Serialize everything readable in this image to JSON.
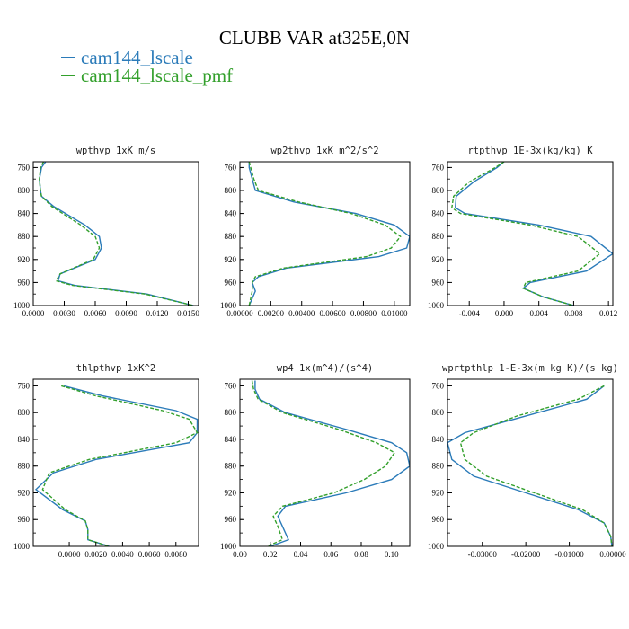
{
  "title": "CLUBB VAR at325E,0N",
  "legend": [
    {
      "label": "cam144_lscale",
      "color": "#2b7bb9"
    },
    {
      "label": "cam144_lscale_pmf",
      "color": "#33a02c"
    }
  ],
  "chart_data": [
    {
      "type": "line",
      "title": "wpthvp  1xK m/s",
      "xlim": [
        0,
        0.016
      ],
      "ylim": [
        1000,
        750
      ],
      "xticks": [
        "0.0000",
        "0.0030",
        "0.0060",
        "0.0090",
        "0.0120",
        "0.0150"
      ],
      "xtick_values": [
        0,
        0.003,
        0.006,
        0.009,
        0.012,
        0.015
      ],
      "yticks": [
        "760",
        "800",
        "840",
        "880",
        "920",
        "960",
        "1000"
      ],
      "ytick_values": [
        760,
        800,
        840,
        880,
        920,
        960,
        1000
      ],
      "series": [
        {
          "name": "cam144_lscale",
          "x": [
            0.0012,
            0.0008,
            0.0006,
            0.0007,
            0.0008,
            0.002,
            0.005,
            0.0064,
            0.0066,
            0.006,
            0.0026,
            0.0024,
            0.004,
            0.011,
            0.0155
          ],
          "y": [
            750,
            760,
            780,
            800,
            810,
            828,
            860,
            880,
            900,
            920,
            945,
            957,
            965,
            980,
            1000
          ]
        },
        {
          "name": "cam144_lscale_pmf",
          "x": [
            0.001,
            0.0007,
            0.0006,
            0.0007,
            0.0008,
            0.0018,
            0.0046,
            0.006,
            0.0064,
            0.0058,
            0.0026,
            0.0022,
            0.0038,
            0.0108,
            0.0155
          ],
          "y": [
            750,
            760,
            780,
            800,
            810,
            828,
            860,
            880,
            900,
            920,
            945,
            957,
            965,
            980,
            1000
          ]
        }
      ]
    },
    {
      "type": "line",
      "title": "wp2thvp  1xK m^2/s^2",
      "xlim": [
        0,
        0.011
      ],
      "ylim": [
        1000,
        750
      ],
      "xticks": [
        "0.00000",
        "0.00200",
        "0.00400",
        "0.00600",
        "0.00800",
        "0.01000"
      ],
      "xtick_values": [
        0,
        0.002,
        0.004,
        0.006,
        0.008,
        0.01
      ],
      "yticks": [
        "760",
        "800",
        "840",
        "880",
        "920",
        "960",
        "1000"
      ],
      "ytick_values": [
        760,
        800,
        840,
        880,
        920,
        960,
        1000
      ],
      "series": [
        {
          "name": "cam144_lscale",
          "x": [
            0.0006,
            0.0006,
            0.0008,
            0.001,
            0.0035,
            0.0075,
            0.01,
            0.011,
            0.0108,
            0.009,
            0.003,
            0.0012,
            0.0008,
            0.001,
            0.0006
          ],
          "y": [
            750,
            760,
            780,
            800,
            820,
            840,
            860,
            880,
            900,
            915,
            935,
            950,
            960,
            975,
            1000
          ]
        },
        {
          "name": "cam144_lscale_pmf",
          "x": [
            0.0006,
            0.0007,
            0.0009,
            0.0012,
            0.0038,
            0.0072,
            0.0094,
            0.0104,
            0.0098,
            0.0082,
            0.0028,
            0.001,
            0.0008,
            0.0008,
            0.0006
          ],
          "y": [
            750,
            760,
            780,
            800,
            820,
            840,
            860,
            880,
            900,
            915,
            935,
            950,
            960,
            975,
            1000
          ]
        }
      ]
    },
    {
      "type": "line",
      "title": "rtpthvp  1E-3x(kg/kg) K",
      "xlim": [
        -0.0065,
        0.0125
      ],
      "ylim": [
        1000,
        750
      ],
      "xticks": [
        "-0.004",
        "0.000",
        "0.004",
        "0.008",
        "0.012"
      ],
      "xtick_values": [
        -0.004,
        0,
        0.004,
        0.008,
        0.012
      ],
      "yticks": [
        "760",
        "800",
        "840",
        "880",
        "920",
        "960",
        "1000"
      ],
      "ytick_values": [
        760,
        800,
        840,
        880,
        920,
        960,
        1000
      ],
      "series": [
        {
          "name": "cam144_lscale",
          "x": [
            0,
            -0.0008,
            -0.0035,
            -0.0055,
            -0.0056,
            -0.0045,
            0.004,
            0.01,
            0.0125,
            0.0095,
            0.003,
            0.0022,
            0.0045,
            0.008
          ],
          "y": [
            750,
            760,
            785,
            810,
            830,
            840,
            860,
            880,
            910,
            940,
            960,
            970,
            985,
            1000
          ]
        },
        {
          "name": "cam144_lscale_pmf",
          "x": [
            0,
            -0.001,
            -0.004,
            -0.0058,
            -0.006,
            -0.005,
            0.003,
            0.0085,
            0.011,
            0.0085,
            0.0025,
            0.0022,
            0.0045,
            0.008
          ],
          "y": [
            750,
            760,
            785,
            810,
            830,
            840,
            860,
            880,
            910,
            940,
            960,
            970,
            985,
            1000
          ]
        }
      ]
    },
    {
      "type": "line",
      "title": "thlpthvp  1xK^2",
      "xlim": [
        -0.0027,
        0.0097
      ],
      "ylim": [
        1000,
        750
      ],
      "xticks": [
        "0.0000",
        "0.0020",
        "0.0040",
        "0.0060",
        "0.0080"
      ],
      "xtick_values": [
        0,
        0.002,
        0.004,
        0.006,
        0.008
      ],
      "yticks": [
        "760",
        "800",
        "840",
        "880",
        "920",
        "960",
        "1000"
      ],
      "ytick_values": [
        760,
        800,
        840,
        880,
        920,
        960,
        1000
      ],
      "series": [
        {
          "name": "cam144_lscale",
          "x": [
            -0.0004,
            0.0025,
            0.008,
            0.0096,
            0.0096,
            0.009,
            0.002,
            -0.0012,
            -0.0025,
            -0.0005,
            0.0012,
            0.0014,
            0.0014,
            0.003
          ],
          "y": [
            760,
            775,
            797,
            810,
            830,
            845,
            870,
            890,
            915,
            945,
            962,
            975,
            990,
            1000
          ]
        },
        {
          "name": "cam144_lscale_pmf",
          "x": [
            -0.0006,
            0.002,
            0.007,
            0.009,
            0.0096,
            0.008,
            0.0015,
            -0.0015,
            -0.002,
            -0.0003,
            0.0012,
            0.0014,
            0.0014,
            0.003
          ],
          "y": [
            760,
            775,
            797,
            810,
            830,
            845,
            870,
            890,
            915,
            945,
            962,
            975,
            990,
            1000
          ]
        }
      ]
    },
    {
      "type": "line",
      "title": "wp4  1x(m^4)/(s^4)",
      "xlim": [
        0,
        0.112
      ],
      "ylim": [
        1000,
        750
      ],
      "xticks": [
        "0.00",
        "0.02",
        "0.04",
        "0.06",
        "0.08",
        "0.10"
      ],
      "xtick_values": [
        0,
        0.02,
        0.04,
        0.06,
        0.08,
        0.1
      ],
      "yticks": [
        "760",
        "800",
        "840",
        "880",
        "920",
        "960",
        "1000"
      ],
      "ytick_values": [
        760,
        800,
        840,
        880,
        920,
        960,
        1000
      ],
      "series": [
        {
          "name": "cam144_lscale",
          "x": [
            0.01,
            0.01,
            0.013,
            0.03,
            0.07,
            0.1,
            0.11,
            0.112,
            0.1,
            0.07,
            0.03,
            0.025,
            0.028,
            0.032,
            0.02
          ],
          "y": [
            752,
            765,
            780,
            800,
            825,
            845,
            860,
            880,
            900,
            920,
            940,
            955,
            970,
            990,
            1000
          ]
        },
        {
          "name": "cam144_lscale_pmf",
          "x": [
            0.008,
            0.009,
            0.012,
            0.028,
            0.065,
            0.09,
            0.102,
            0.096,
            0.082,
            0.062,
            0.028,
            0.022,
            0.025,
            0.028,
            0.018
          ],
          "y": [
            752,
            765,
            780,
            800,
            825,
            845,
            860,
            880,
            900,
            920,
            940,
            955,
            970,
            990,
            1000
          ]
        }
      ]
    },
    {
      "type": "line",
      "title": "wprtpthlp  1-E-3x(m kg K)/(s kg)",
      "xlim": [
        -0.038,
        0.0
      ],
      "ylim": [
        1000,
        750
      ],
      "xticks": [
        "-0.03000",
        "-0.02000",
        "-0.01000",
        "0.00000"
      ],
      "xtick_values": [
        -0.03,
        -0.02,
        -0.01,
        0
      ],
      "yticks": [
        "760",
        "800",
        "840",
        "880",
        "920",
        "960",
        "1000"
      ],
      "ytick_values": [
        760,
        800,
        840,
        880,
        920,
        960,
        1000
      ],
      "series": [
        {
          "name": "cam144_lscale",
          "x": [
            -0.002,
            -0.006,
            -0.02,
            -0.034,
            -0.038,
            -0.037,
            -0.032,
            -0.02,
            -0.008,
            -0.002,
            -0.0005,
            -0.0002
          ],
          "y": [
            760,
            780,
            805,
            830,
            845,
            870,
            895,
            920,
            945,
            965,
            985,
            1000
          ]
        },
        {
          "name": "cam144_lscale_pmf",
          "x": [
            -0.002,
            -0.008,
            -0.022,
            -0.032,
            -0.035,
            -0.034,
            -0.029,
            -0.018,
            -0.007,
            -0.002,
            -0.0005,
            -0.0002
          ],
          "y": [
            760,
            780,
            805,
            830,
            845,
            870,
            895,
            920,
            945,
            965,
            985,
            1000
          ]
        }
      ]
    }
  ]
}
